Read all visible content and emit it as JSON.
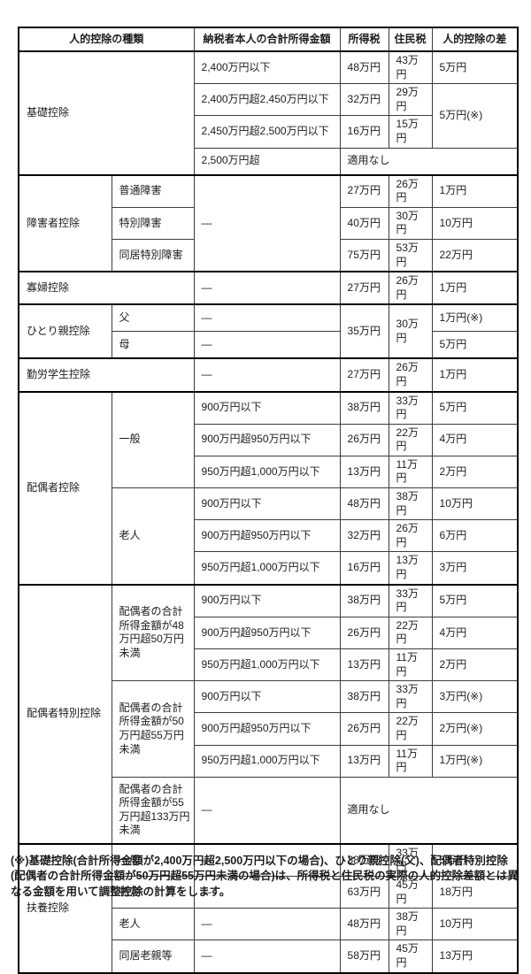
{
  "table": {
    "headers": [
      "人的控除の種類",
      "納税者本人の合計所得金額",
      "所得税",
      "住民税",
      "人的控除の差"
    ],
    "rows": [
      {
        "sec": true,
        "cells": [
          {
            "t": "基礎控除",
            "cs": 2,
            "rs": 4,
            "k": "label"
          },
          {
            "t": "2,400万円以下",
            "k": "income"
          },
          {
            "t": "48万円",
            "k": "val"
          },
          {
            "t": "43万円",
            "k": "val"
          },
          {
            "t": "5万円",
            "k": "val"
          }
        ]
      },
      {
        "cells": [
          {
            "t": "2,400万円超2,450万円以下",
            "k": "income"
          },
          {
            "t": "32万円",
            "k": "val"
          },
          {
            "t": "29万円",
            "k": "val"
          },
          {
            "t": "5万円(※)",
            "rs": 2,
            "k": "val"
          }
        ]
      },
      {
        "cells": [
          {
            "t": "2,450万円超2,500万円以下",
            "k": "income"
          },
          {
            "t": "16万円",
            "k": "val"
          },
          {
            "t": "15万円",
            "k": "val"
          }
        ]
      },
      {
        "cells": [
          {
            "t": "2,500万円超",
            "k": "income"
          },
          {
            "t": "適用なし",
            "cs": 3,
            "k": "na"
          }
        ]
      },
      {
        "sec": true,
        "cells": [
          {
            "t": "障害者控除",
            "rs": 3,
            "k": "label"
          },
          {
            "t": "普通障害",
            "k": "sub"
          },
          {
            "t": "―",
            "rs": 3,
            "k": "income"
          },
          {
            "t": "27万円",
            "k": "val"
          },
          {
            "t": "26万円",
            "k": "val"
          },
          {
            "t": "1万円",
            "k": "val"
          }
        ]
      },
      {
        "cells": [
          {
            "t": "特別障害",
            "k": "sub"
          },
          {
            "t": "40万円",
            "k": "val"
          },
          {
            "t": "30万円",
            "k": "val"
          },
          {
            "t": "10万円",
            "k": "val"
          }
        ]
      },
      {
        "cells": [
          {
            "t": "同居特別障害",
            "k": "sub"
          },
          {
            "t": "75万円",
            "k": "val"
          },
          {
            "t": "53万円",
            "k": "val"
          },
          {
            "t": "22万円",
            "k": "val"
          }
        ]
      },
      {
        "sec": true,
        "cells": [
          {
            "t": "寡婦控除",
            "cs": 2,
            "k": "label"
          },
          {
            "t": "―",
            "k": "income"
          },
          {
            "t": "27万円",
            "k": "val"
          },
          {
            "t": "26万円",
            "k": "val"
          },
          {
            "t": "1万円",
            "k": "val"
          }
        ]
      },
      {
        "sec": true,
        "cells": [
          {
            "t": "ひとり親控除",
            "rs": 2,
            "k": "label"
          },
          {
            "t": "父",
            "k": "sub"
          },
          {
            "t": "―",
            "k": "income"
          },
          {
            "t": "35万円",
            "rs": 2,
            "k": "val"
          },
          {
            "t": "30万円",
            "rs": 2,
            "k": "val"
          },
          {
            "t": "1万円(※)",
            "k": "val"
          }
        ]
      },
      {
        "cells": [
          {
            "t": "母",
            "k": "sub"
          },
          {
            "t": "―",
            "k": "income"
          },
          {
            "t": "5万円",
            "k": "val"
          }
        ]
      },
      {
        "sec": true,
        "cells": [
          {
            "t": "勤労学生控除",
            "cs": 2,
            "k": "label"
          },
          {
            "t": "―",
            "k": "income"
          },
          {
            "t": "27万円",
            "k": "val"
          },
          {
            "t": "26万円",
            "k": "val"
          },
          {
            "t": "1万円",
            "k": "val"
          }
        ]
      },
      {
        "sec": true,
        "cells": [
          {
            "t": "配偶者控除",
            "rs": 6,
            "k": "label"
          },
          {
            "t": "一般",
            "rs": 3,
            "k": "sub"
          },
          {
            "t": "900万円以下",
            "k": "income"
          },
          {
            "t": "38万円",
            "k": "val"
          },
          {
            "t": "33万円",
            "k": "val"
          },
          {
            "t": "5万円",
            "k": "val"
          }
        ]
      },
      {
        "cells": [
          {
            "t": "900万円超950万円以下",
            "k": "income"
          },
          {
            "t": "26万円",
            "k": "val"
          },
          {
            "t": "22万円",
            "k": "val"
          },
          {
            "t": "4万円",
            "k": "val"
          }
        ]
      },
      {
        "cells": [
          {
            "t": "950万円超1,000万円以下",
            "k": "income"
          },
          {
            "t": "13万円",
            "k": "val"
          },
          {
            "t": "11万円",
            "k": "val"
          },
          {
            "t": "2万円",
            "k": "val"
          }
        ]
      },
      {
        "cells": [
          {
            "t": "老人",
            "rs": 3,
            "k": "sub"
          },
          {
            "t": "900万円以下",
            "k": "income"
          },
          {
            "t": "48万円",
            "k": "val"
          },
          {
            "t": "38万円",
            "k": "val"
          },
          {
            "t": "10万円",
            "k": "val"
          }
        ]
      },
      {
        "cells": [
          {
            "t": "900万円超950万円以下",
            "k": "income"
          },
          {
            "t": "32万円",
            "k": "val"
          },
          {
            "t": "26万円",
            "k": "val"
          },
          {
            "t": "6万円",
            "k": "val"
          }
        ]
      },
      {
        "cells": [
          {
            "t": "950万円超1,000万円以下",
            "k": "income"
          },
          {
            "t": "16万円",
            "k": "val"
          },
          {
            "t": "13万円",
            "k": "val"
          },
          {
            "t": "3万円",
            "k": "val"
          }
        ]
      },
      {
        "sec": true,
        "cells": [
          {
            "t": "配偶者特別控除",
            "rs": 7,
            "k": "label"
          },
          {
            "t": "配偶者の合計所得金額が48万円超50万円未満",
            "rs": 3,
            "k": "sub"
          },
          {
            "t": "900万円以下",
            "k": "income"
          },
          {
            "t": "38万円",
            "k": "val"
          },
          {
            "t": "33万円",
            "k": "val"
          },
          {
            "t": "5万円",
            "k": "val"
          }
        ]
      },
      {
        "cells": [
          {
            "t": "900万円超950万円以下",
            "k": "income"
          },
          {
            "t": "26万円",
            "k": "val"
          },
          {
            "t": "22万円",
            "k": "val"
          },
          {
            "t": "4万円",
            "k": "val"
          }
        ]
      },
      {
        "cells": [
          {
            "t": "950万円超1,000万円以下",
            "k": "income"
          },
          {
            "t": "13万円",
            "k": "val"
          },
          {
            "t": "11万円",
            "k": "val"
          },
          {
            "t": "2万円",
            "k": "val"
          }
        ]
      },
      {
        "cells": [
          {
            "t": "配偶者の合計所得金額が50万円超55万円未満",
            "rs": 3,
            "k": "sub"
          },
          {
            "t": "900万円以下",
            "k": "income"
          },
          {
            "t": "38万円",
            "k": "val"
          },
          {
            "t": "33万円",
            "k": "val"
          },
          {
            "t": "3万円(※)",
            "k": "val"
          }
        ]
      },
      {
        "cells": [
          {
            "t": "900万円超950万円以下",
            "k": "income"
          },
          {
            "t": "26万円",
            "k": "val"
          },
          {
            "t": "22万円",
            "k": "val"
          },
          {
            "t": "2万円(※)",
            "k": "val"
          }
        ]
      },
      {
        "cells": [
          {
            "t": "950万円超1,000万円以下",
            "k": "income"
          },
          {
            "t": "13万円",
            "k": "val"
          },
          {
            "t": "11万円",
            "k": "val"
          },
          {
            "t": "1万円(※)",
            "k": "val"
          }
        ]
      },
      {
        "tall": true,
        "cells": [
          {
            "t": "配偶者の合計所得金額が55万円超133万円未満",
            "k": "sub"
          },
          {
            "t": "―",
            "k": "income"
          },
          {
            "t": "適用なし",
            "cs": 3,
            "k": "na"
          }
        ]
      },
      {
        "sec": true,
        "cells": [
          {
            "t": "扶養控除",
            "rs": 4,
            "k": "label"
          },
          {
            "t": "一般",
            "k": "sub"
          },
          {
            "t": "―",
            "k": "income"
          },
          {
            "t": "38万円",
            "k": "val"
          },
          {
            "t": "33万円",
            "k": "val"
          },
          {
            "t": "5万円",
            "k": "val"
          }
        ]
      },
      {
        "cells": [
          {
            "t": "特定",
            "k": "sub"
          },
          {
            "t": "―",
            "k": "income"
          },
          {
            "t": "63万円",
            "k": "val"
          },
          {
            "t": "45万円",
            "k": "val"
          },
          {
            "t": "18万円",
            "k": "val"
          }
        ]
      },
      {
        "cells": [
          {
            "t": "老人",
            "k": "sub"
          },
          {
            "t": "―",
            "k": "income"
          },
          {
            "t": "48万円",
            "k": "val"
          },
          {
            "t": "38万円",
            "k": "val"
          },
          {
            "t": "10万円",
            "k": "val"
          }
        ]
      },
      {
        "cells": [
          {
            "t": "同居老親等",
            "k": "sub"
          },
          {
            "t": "―",
            "k": "income"
          },
          {
            "t": "58万円",
            "k": "val"
          },
          {
            "t": "45万円",
            "k": "val"
          },
          {
            "t": "13万円",
            "k": "val"
          }
        ]
      }
    ]
  },
  "footnote": "(※)基礎控除(合計所得金額が2,400万円超2,500万円以下の場合)、ひとり親控除(父)、配偶者特別控除(配偶者の合計所得金額が50万円超55万円未満の場合)は、所得税と住民税の実際の人的控除差額とは異なる金額を用いて調整控除の計算をします。",
  "colors": {
    "border_outer": "#000000",
    "border_inner": "#3c3c3c",
    "text": "#1c1c1c",
    "background": "#ffffff"
  }
}
